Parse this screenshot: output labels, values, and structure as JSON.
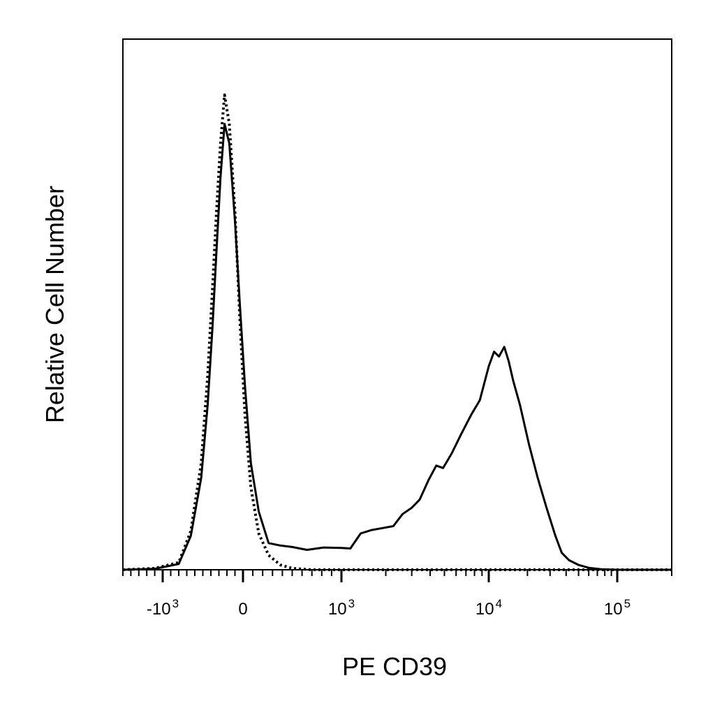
{
  "chart_data": {
    "type": "line",
    "xlabel": "PE CD39",
    "ylabel": "Relative Cell Number",
    "x_scale": "biexponential",
    "xlim": [
      -1500,
      200000
    ],
    "ylim": [
      0,
      100
    ],
    "grid": false,
    "legend": "none",
    "x_ticks": [
      {
        "value": -1000,
        "base": "-10",
        "exp": "3"
      },
      {
        "value": 0,
        "base": "0",
        "exp": ""
      },
      {
        "value": 1000,
        "base": "10",
        "exp": "3"
      },
      {
        "value": 10000,
        "base": "10",
        "exp": "4"
      },
      {
        "value": 100000,
        "base": "10",
        "exp": "5"
      }
    ],
    "series": [
      {
        "style": "solid",
        "color": "#000000",
        "x": [
          -1500,
          -1100,
          -800,
          -650,
          -520,
          -440,
          -380,
          -330,
          -280,
          -230,
          -170,
          -100,
          -40,
          20,
          80,
          160,
          260,
          380,
          500,
          650,
          820,
          1000,
          1150,
          1350,
          1600,
          1900,
          2250,
          2600,
          3000,
          3400,
          3900,
          4400,
          4900,
          5600,
          6500,
          7600,
          8700,
          10000,
          11000,
          12000,
          13200,
          14300,
          15500,
          17500,
          20500,
          24000,
          28000,
          33000,
          37000,
          42000,
          50000,
          60000,
          75000,
          100000,
          200000
        ],
        "y": [
          0,
          0.2,
          1.2,
          7,
          19,
          34,
          50,
          66,
          81,
          92,
          88,
          72,
          55,
          38,
          22,
          12,
          5.5,
          5,
          4.7,
          4.1,
          4.6,
          4.5,
          4.4,
          7.5,
          8.2,
          8.6,
          9,
          11.5,
          12.8,
          14.5,
          18.5,
          21.5,
          21,
          24,
          28,
          32,
          35,
          42,
          45,
          44,
          46,
          43,
          39,
          34,
          26,
          19,
          13,
          7,
          3.5,
          2,
          1,
          0.4,
          0.1,
          0,
          0
        ]
      },
      {
        "style": "dotted",
        "color": "#000000",
        "x": [
          -1500,
          -1100,
          -800,
          -650,
          -520,
          -440,
          -380,
          -330,
          -280,
          -230,
          -170,
          -100,
          -40,
          20,
          80,
          160,
          260,
          380,
          500,
          700,
          1000,
          200000
        ],
        "y": [
          0,
          0.3,
          1.5,
          8,
          22,
          40,
          58,
          74,
          88,
          98,
          92,
          74,
          52,
          32,
          17,
          7.5,
          3,
          1,
          0.3,
          0,
          0,
          0
        ]
      }
    ]
  }
}
